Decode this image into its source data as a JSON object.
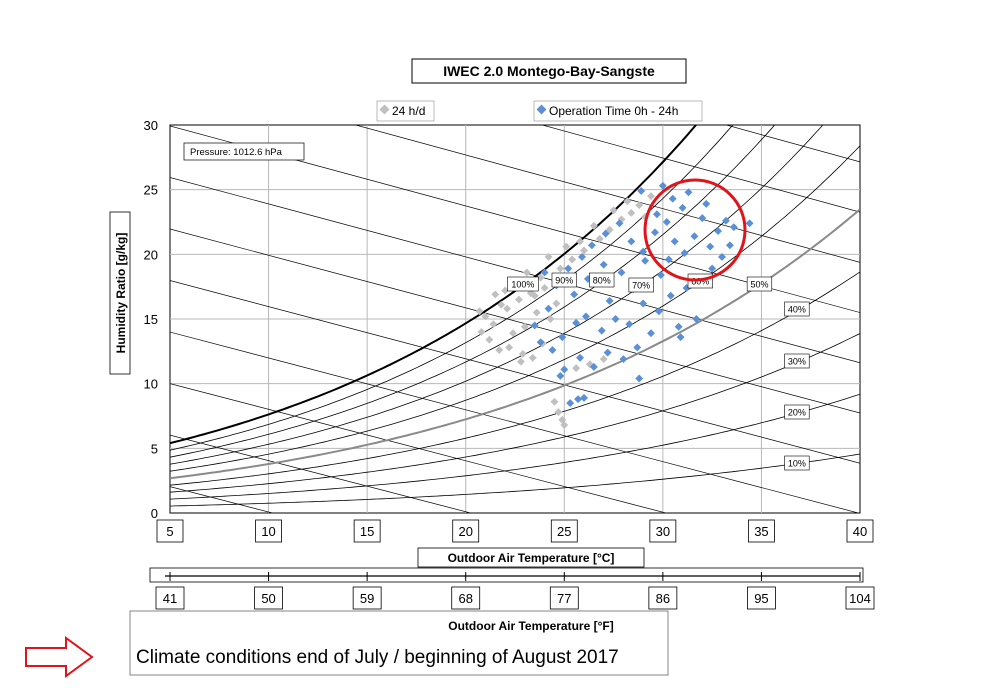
{
  "chart_data": {
    "type": "scatter",
    "title": "IWEC 2.0 Montego-Bay-Sangste",
    "legend": {
      "placement": "top",
      "entries": [
        {
          "label": "24 h/d",
          "color": "#c0c0c0"
        },
        {
          "label": "Operation Time 0h - 24h",
          "color": "#5b8fd6"
        }
      ]
    },
    "pressure_label": "Pressure: 1012.6 hPa",
    "xlabel": "Outdoor Air Temperature  [°C]",
    "ylabel": "Humidity Ratio  [g/kg]",
    "xlim": [
      5,
      40
    ],
    "ylim": [
      0,
      30
    ],
    "x_ticks": [
      "5",
      "10",
      "15",
      "20",
      "25",
      "30",
      "35",
      "40"
    ],
    "y_ticks": [
      "0",
      "5",
      "10",
      "15",
      "20",
      "25",
      "30"
    ],
    "f_xlabel": "Outdoor Air Temperature  [°F]",
    "f_ticks": [
      "41",
      "50",
      "59",
      "68",
      "77",
      "86",
      "95",
      "104"
    ],
    "grid": true,
    "rh_curves": [
      100,
      90,
      80,
      70,
      60,
      50,
      40,
      30,
      20,
      10
    ],
    "rh_labels": [
      "100%",
      "90%",
      "80%",
      "70%",
      "60%",
      "50%",
      "40%",
      "30%",
      "20%",
      "10%"
    ],
    "series": [
      {
        "name": "24 h/d",
        "color": "#c0c0c0",
        "points": [
          [
            21.0,
            15.2
          ],
          [
            21.4,
            14.6
          ],
          [
            21.8,
            16.1
          ],
          [
            22.1,
            15.8
          ],
          [
            22.4,
            13.9
          ],
          [
            22.7,
            16.5
          ],
          [
            23.0,
            14.4
          ],
          [
            23.3,
            17.0
          ],
          [
            23.6,
            15.5
          ],
          [
            23.9,
            13.1
          ],
          [
            22.2,
            12.8
          ],
          [
            22.9,
            12.3
          ],
          [
            23.5,
            16.8
          ],
          [
            24.0,
            17.4
          ],
          [
            24.3,
            15.0
          ],
          [
            24.6,
            16.2
          ],
          [
            21.2,
            13.4
          ],
          [
            21.7,
            12.6
          ],
          [
            22.5,
            17.6
          ],
          [
            23.8,
            18.2
          ],
          [
            24.8,
            18.9
          ],
          [
            25.4,
            19.6
          ],
          [
            26.0,
            20.3
          ],
          [
            26.8,
            21.2
          ],
          [
            27.3,
            21.9
          ],
          [
            27.9,
            22.7
          ],
          [
            28.4,
            23.2
          ],
          [
            28.8,
            23.8
          ],
          [
            29.1,
            22.9
          ],
          [
            27.5,
            23.4
          ],
          [
            26.5,
            22.2
          ],
          [
            25.8,
            21.0
          ],
          [
            28.2,
            24.1
          ],
          [
            29.4,
            24.5
          ],
          [
            24.2,
            19.8
          ],
          [
            25.1,
            20.6
          ],
          [
            22.8,
            11.7
          ],
          [
            23.4,
            12.0
          ],
          [
            24.5,
            8.6
          ],
          [
            24.9,
            7.2
          ],
          [
            25.0,
            6.8
          ],
          [
            24.7,
            7.8
          ],
          [
            25.6,
            11.2
          ],
          [
            26.3,
            11.5
          ],
          [
            27.0,
            11.9
          ],
          [
            22.0,
            17.2
          ],
          [
            21.5,
            16.9
          ],
          [
            20.8,
            14.0
          ],
          [
            20.7,
            15.6
          ],
          [
            23.1,
            18.6
          ]
        ]
      },
      {
        "name": "Operation Time 0h - 24h",
        "color": "#5b8fd6",
        "points": [
          [
            23.5,
            14.5
          ],
          [
            24.2,
            15.8
          ],
          [
            24.9,
            13.6
          ],
          [
            25.5,
            16.9
          ],
          [
            26.1,
            15.2
          ],
          [
            26.7,
            17.8
          ],
          [
            27.3,
            16.4
          ],
          [
            27.9,
            18.6
          ],
          [
            28.5,
            17.3
          ],
          [
            29.1,
            19.5
          ],
          [
            24.6,
            17.6
          ],
          [
            25.2,
            18.9
          ],
          [
            25.9,
            19.8
          ],
          [
            26.4,
            20.7
          ],
          [
            27.1,
            21.6
          ],
          [
            27.8,
            22.4
          ],
          [
            28.4,
            21.0
          ],
          [
            29.0,
            20.2
          ],
          [
            29.6,
            21.7
          ],
          [
            30.2,
            22.5
          ],
          [
            30.6,
            21.0
          ],
          [
            31.1,
            20.1
          ],
          [
            31.6,
            21.4
          ],
          [
            32.0,
            22.8
          ],
          [
            32.4,
            20.6
          ],
          [
            31.0,
            23.6
          ],
          [
            30.5,
            24.3
          ],
          [
            31.3,
            24.8
          ],
          [
            32.2,
            23.9
          ],
          [
            32.8,
            21.8
          ],
          [
            33.2,
            22.6
          ],
          [
            33.6,
            22.1
          ],
          [
            34.4,
            22.4
          ],
          [
            33.0,
            19.8
          ],
          [
            32.5,
            18.9
          ],
          [
            31.8,
            18.2
          ],
          [
            31.2,
            17.4
          ],
          [
            30.4,
            16.8
          ],
          [
            29.8,
            15.6
          ],
          [
            30.8,
            14.4
          ],
          [
            31.7,
            15.0
          ],
          [
            29.4,
            13.9
          ],
          [
            28.7,
            12.8
          ],
          [
            28.0,
            11.9
          ],
          [
            27.2,
            12.4
          ],
          [
            26.5,
            11.3
          ],
          [
            25.8,
            12.0
          ],
          [
            25.0,
            11.1
          ],
          [
            24.4,
            12.6
          ],
          [
            23.8,
            13.2
          ],
          [
            26.9,
            14.1
          ],
          [
            27.6,
            15.0
          ],
          [
            28.3,
            14.6
          ],
          [
            29.0,
            16.2
          ],
          [
            29.9,
            18.4
          ],
          [
            30.3,
            19.6
          ],
          [
            27.0,
            19.2
          ],
          [
            26.2,
            18.1
          ],
          [
            25.6,
            14.7
          ],
          [
            24.8,
            10.6
          ],
          [
            25.7,
            8.8
          ],
          [
            26.0,
            8.9
          ],
          [
            25.3,
            8.5
          ],
          [
            28.8,
            10.4
          ],
          [
            30.9,
            13.6
          ],
          [
            33.4,
            20.7
          ],
          [
            29.7,
            23.1
          ],
          [
            28.9,
            24.9
          ],
          [
            30.0,
            25.3
          ],
          [
            24.0,
            18.6
          ]
        ]
      }
    ]
  },
  "annotation_text": "Climate conditions end of July / beginning of August 2017"
}
